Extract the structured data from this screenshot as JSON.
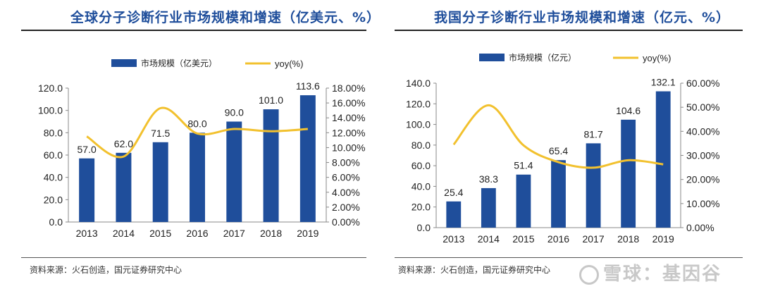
{
  "left_panel": {
    "title": "全球分子诊断行业市场规模和增速（亿美元、%）",
    "source": "资料来源：火石创造，国元证券研究中心"
  },
  "right_panel": {
    "title": "我国分子诊断行业市场规模和增速（亿元、%）",
    "source": "资料来源：火石创造，国元证券研究中心"
  },
  "watermark": "雪球：基因谷",
  "colors": {
    "bar": "#1f4e9b",
    "line": "#f2c12e",
    "title": "#1f4e9b"
  },
  "chart_data": [
    {
      "type": "bar",
      "categories": [
        "2013",
        "2014",
        "2015",
        "2016",
        "2017",
        "2018",
        "2019"
      ],
      "series": [
        {
          "name": "市场规模（亿美元）",
          "type": "bar",
          "axis": "left",
          "values": [
            57.0,
            62.0,
            71.5,
            80.0,
            90.0,
            101.0,
            113.6
          ]
        },
        {
          "name": "yoy(%)",
          "type": "line",
          "axis": "right",
          "values": [
            11.5,
            8.8,
            15.3,
            11.9,
            12.5,
            12.2,
            12.5
          ]
        }
      ],
      "data_labels": [
        "57.0",
        "62.0",
        "71.5",
        "80.0",
        "90.0",
        "101.0",
        "113.6"
      ],
      "ylim": [
        0,
        120
      ],
      "yticks": [
        "0.0",
        "20.0",
        "40.0",
        "60.0",
        "80.0",
        "100.0",
        "120.0"
      ],
      "y2lim": [
        0,
        18
      ],
      "y2ticks": [
        "0.00%",
        "2.00%",
        "4.00%",
        "6.00%",
        "8.00%",
        "10.00%",
        "12.00%",
        "14.00%",
        "16.00%",
        "18.00%"
      ],
      "legend_position": "top",
      "grid": false
    },
    {
      "type": "bar",
      "categories": [
        "2013",
        "2014",
        "2015",
        "2016",
        "2017",
        "2018",
        "2019"
      ],
      "series": [
        {
          "name": "市场规模（亿元）",
          "type": "bar",
          "axis": "left",
          "values": [
            25.4,
            38.3,
            51.4,
            65.4,
            81.7,
            104.6,
            132.1
          ]
        },
        {
          "name": "yoy(%)",
          "type": "line",
          "axis": "right",
          "values": [
            34.5,
            50.8,
            34.2,
            27.2,
            24.9,
            28.0,
            26.3
          ]
        }
      ],
      "data_labels": [
        "25.4",
        "38.3",
        "51.4",
        "65.4",
        "81.7",
        "104.6",
        "132.1"
      ],
      "ylim": [
        0,
        140
      ],
      "yticks": [
        "0.0",
        "20.0",
        "40.0",
        "60.0",
        "80.0",
        "100.0",
        "120.0",
        "140.0"
      ],
      "y2lim": [
        0,
        60
      ],
      "y2ticks": [
        "0.00%",
        "10.00%",
        "20.00%",
        "30.00%",
        "40.00%",
        "50.00%",
        "60.00%"
      ],
      "legend_position": "top",
      "grid": false
    }
  ]
}
